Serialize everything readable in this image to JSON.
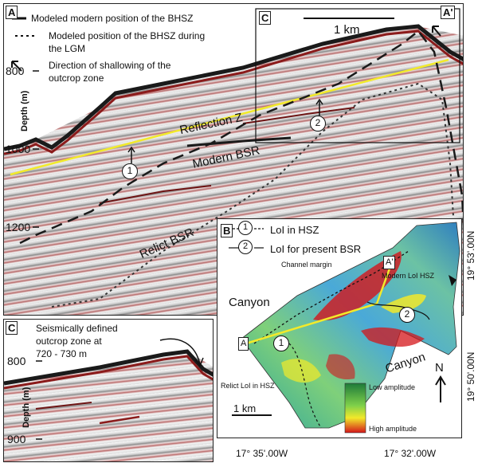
{
  "panel_a": {
    "letter": "A",
    "letter_end": "A'",
    "legend": {
      "modern": "Modeled modern position of the BHSZ",
      "lgm_line1": "Modeled position of the BHSZ during",
      "lgm_line2": "the LGM",
      "shallow_line1": "Direction of shallowing of the",
      "shallow_line2": "outcrop zone"
    },
    "depth_ticks": [
      "800",
      "1000",
      "1200"
    ],
    "depth_title": "Depth (m)",
    "labels": {
      "reflection_z": "Reflection Z",
      "modern_bsr": "Modern BSR",
      "relict_bsr": "Relict BSR"
    },
    "markers": [
      "1",
      "2"
    ],
    "inset": {
      "letter": "C",
      "scale": "1 km"
    },
    "colors": {
      "bhsz_line": "#1a1a1a",
      "reflection_z": "#f2ea2a",
      "trough": "#8b1b1b"
    }
  },
  "panel_c": {
    "letter": "C",
    "note_line1": "Seismically defined",
    "note_line2": "outcrop zone at",
    "note_line3": "720 - 730 m",
    "depth_ticks": [
      "800",
      "900"
    ],
    "depth_title": "Depth (m)"
  },
  "panel_b": {
    "letter": "B",
    "legend_hsz_num": "1",
    "legend_hsz": "LoI in HSZ",
    "legend_bsr_num": "2",
    "legend_bsr": "LoI for present BSR",
    "channel_margin": "Channel margin",
    "canyon_left": "Canyon",
    "canyon_right": "Canyon",
    "modern_loi": "Modern LoI HSZ",
    "relict_loi": "Relict LoI in HSZ",
    "profile_start": "A",
    "profile_end": "A'",
    "markers": [
      "1",
      "2"
    ],
    "scale": "1 km",
    "north": "N",
    "amp_low": "Low amplitude",
    "amp_high": "High amplitude",
    "coord_right_top": "19° 53'.00N",
    "coord_right_bottom": "19° 50'.00N",
    "coord_bottom_left": "17° 35'.00W",
    "coord_bottom_right": "17° 32'.00W",
    "colors": {
      "amp_low": "#1e7a3a",
      "amp_mid": "#f2e92a",
      "amp_high": "#d4151a",
      "map_base": "#5cb8b0"
    }
  }
}
